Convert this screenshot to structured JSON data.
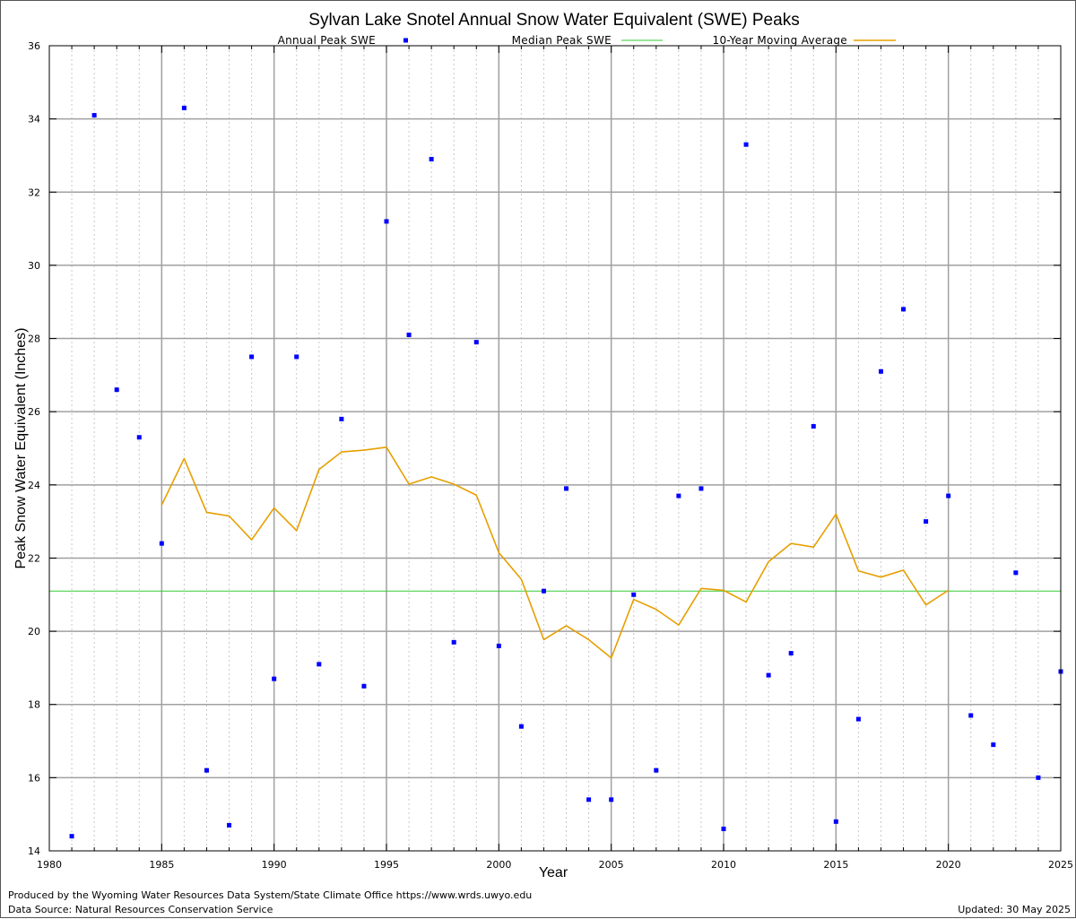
{
  "chart_data": {
    "type": "scatter",
    "title": "Sylvan Lake Snotel Annual Snow Water Equivalent (SWE) Peaks",
    "xlabel": "Year",
    "ylabel": "Peak Snow Water Equivalent (Inches)",
    "xlim": [
      1980,
      2025
    ],
    "ylim": [
      14,
      36
    ],
    "x_ticks": [
      1980,
      1985,
      1990,
      1995,
      2000,
      2005,
      2010,
      2015,
      2020,
      2025
    ],
    "y_ticks": [
      14,
      16,
      18,
      20,
      22,
      24,
      26,
      28,
      30,
      32,
      34,
      36
    ],
    "grid": true,
    "legend_position": "top",
    "colors": {
      "annual": "#0000ff",
      "median": "#33cc33",
      "moving_average": "#e69f00",
      "grid_major": "#a0a0a0",
      "grid_minor": "#c8c8c8"
    },
    "series": [
      {
        "name": "Annual Peak SWE",
        "kind": "points",
        "x": [
          1981,
          1982,
          1983,
          1984,
          1985,
          1986,
          1987,
          1988,
          1989,
          1990,
          1991,
          1992,
          1993,
          1994,
          1995,
          1996,
          1997,
          1998,
          1999,
          2000,
          2001,
          2002,
          2003,
          2004,
          2005,
          2006,
          2007,
          2008,
          2009,
          2010,
          2011,
          2012,
          2013,
          2014,
          2015,
          2016,
          2017,
          2018,
          2019,
          2020,
          2021,
          2022,
          2023,
          2024,
          2025
        ],
        "y": [
          14.4,
          34.1,
          26.6,
          25.3,
          22.4,
          34.3,
          16.2,
          14.7,
          27.5,
          18.7,
          27.5,
          19.1,
          25.8,
          18.5,
          31.2,
          28.1,
          32.9,
          19.7,
          27.9,
          19.6,
          17.4,
          21.1,
          23.9,
          15.4,
          15.4,
          21.0,
          16.2,
          23.7,
          23.9,
          14.6,
          33.3,
          18.8,
          19.4,
          25.6,
          14.8,
          17.6,
          27.1,
          28.8,
          23.0,
          23.7,
          17.7,
          16.9,
          21.6,
          16.0,
          18.9
        ]
      },
      {
        "name": "Median Peak SWE",
        "kind": "hline",
        "y": 21.1
      },
      {
        "name": "10-Year Moving Average",
        "kind": "line",
        "x": [
          1985,
          1986,
          1987,
          1988,
          1989,
          1990,
          1991,
          1992,
          1993,
          1994,
          1995,
          1996,
          1997,
          1998,
          1999,
          2000,
          2001,
          2002,
          2003,
          2004,
          2005,
          2006,
          2007,
          2008,
          2009,
          2010,
          2011,
          2012,
          2013,
          2014,
          2015,
          2016,
          2017,
          2018,
          2019,
          2020
        ],
        "y": [
          23.45,
          24.72,
          23.25,
          23.15,
          22.5,
          23.37,
          22.75,
          24.42,
          24.9,
          24.95,
          25.03,
          24.02,
          24.22,
          24.02,
          23.72,
          22.15,
          21.42,
          19.77,
          20.15,
          19.77,
          19.27,
          20.87,
          20.6,
          20.17,
          21.17,
          21.12,
          20.8,
          21.9,
          22.4,
          22.3,
          23.2,
          21.65,
          21.48,
          21.67,
          20.72,
          21.12
        ]
      }
    ]
  },
  "footer": {
    "produced_by": "Produced by the Wyoming Water Resources Data System/State Climate Office https://www.wrds.uwyo.edu",
    "data_source": "Data Source: Natural Resources Conservation Service",
    "updated": "Updated: 30 May 2025"
  }
}
